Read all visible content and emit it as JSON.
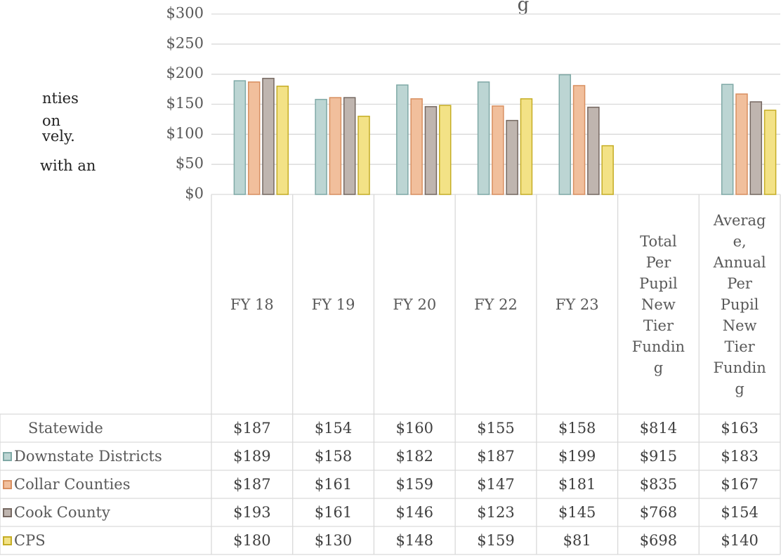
{
  "background_text": [
    "nties",
    "on",
    "vely.",
    "with an"
  ],
  "chart_data": {
    "type": "bar",
    "title": "g",
    "categories": [
      "FY 18",
      "FY 19",
      "FY 20",
      "FY 22",
      "FY 23",
      "Total Per Pupil New Tier Funding",
      "Average, Annual Per Pupil New Tier Funding"
    ],
    "plotted": [
      true,
      true,
      true,
      true,
      true,
      false,
      true
    ],
    "ylim": [
      0,
      300
    ],
    "yticks": [
      {
        "value": 0,
        "label": "$0"
      },
      {
        "value": 50,
        "label": "$50"
      },
      {
        "value": 100,
        "label": "$100"
      },
      {
        "value": 150,
        "label": "$150"
      },
      {
        "value": 200,
        "label": "$200"
      },
      {
        "value": 250,
        "label": "$250"
      },
      {
        "value": 300,
        "label": "$300"
      }
    ],
    "grid": true,
    "data_table": true,
    "series": [
      {
        "name": "Statewide",
        "color": null,
        "values": [
          187,
          154,
          160,
          155,
          158,
          814,
          163
        ],
        "value_labels": [
          "$187",
          "$154",
          "$160",
          "$155",
          "$158",
          "$814",
          "$163"
        ]
      },
      {
        "name": "Downstate Districts",
        "color": "#bcd5d3",
        "stroke": "#7fa9a6",
        "values": [
          189,
          158,
          182,
          187,
          199,
          915,
          183
        ],
        "value_labels": [
          "$189",
          "$158",
          "$182",
          "$187",
          "$199",
          "$915",
          "$183"
        ]
      },
      {
        "name": "Collar Counties",
        "color": "#f1bf9c",
        "stroke": "#d88f60",
        "values": [
          187,
          161,
          159,
          147,
          181,
          835,
          167
        ],
        "value_labels": [
          "$187",
          "$161",
          "$159",
          "$147",
          "$181",
          "$835",
          "$167"
        ]
      },
      {
        "name": "Cook County",
        "color": "#bfb5af",
        "stroke": "#756861",
        "values": [
          193,
          161,
          146,
          123,
          145,
          768,
          154
        ],
        "value_labels": [
          "$193",
          "$161",
          "$146",
          "$123",
          "$145",
          "$768",
          "$154"
        ]
      },
      {
        "name": "CPS",
        "color": "#f3e286",
        "stroke": "#c5ad25",
        "values": [
          180,
          130,
          148,
          159,
          81,
          698,
          140
        ],
        "value_labels": [
          "$180",
          "$130",
          "$148",
          "$159",
          "$81",
          "$698",
          "$140"
        ]
      }
    ]
  }
}
